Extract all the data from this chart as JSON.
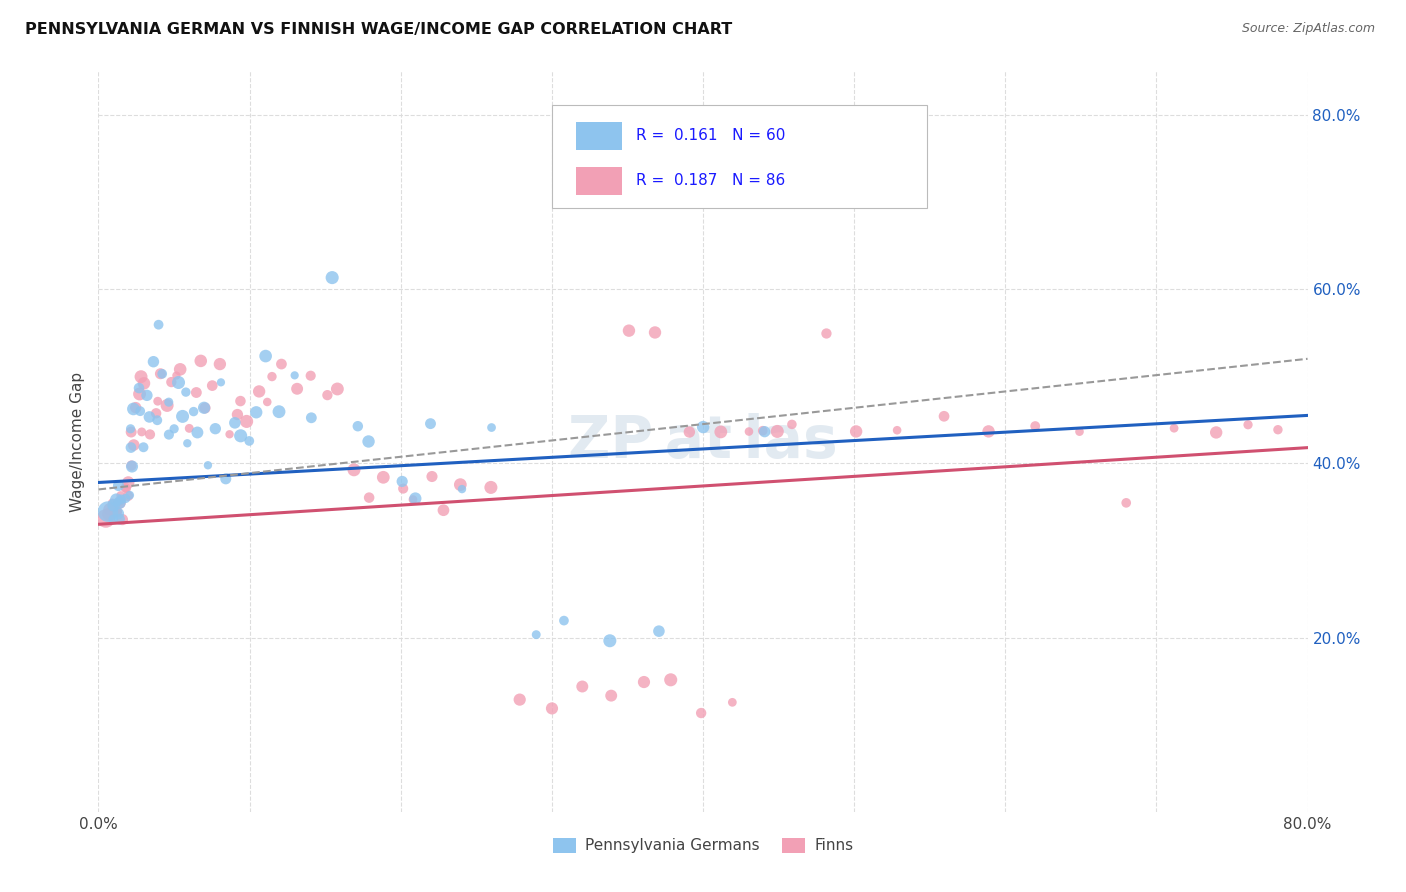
{
  "title": "PENNSYLVANIA GERMAN VS FINNISH WAGE/INCOME GAP CORRELATION CHART",
  "source": "Source: ZipAtlas.com",
  "ylabel": "Wage/Income Gap",
  "xlim": [
    0.0,
    0.8
  ],
  "ylim": [
    0.0,
    0.85
  ],
  "xtick_positions": [
    0.0,
    0.1,
    0.2,
    0.3,
    0.4,
    0.5,
    0.6,
    0.7,
    0.8
  ],
  "xtick_labels": [
    "0.0%",
    "",
    "",
    "",
    "",
    "",
    "",
    "",
    "80.0%"
  ],
  "ytick_positions": [
    0.2,
    0.4,
    0.6,
    0.8
  ],
  "ytick_labels": [
    "20.0%",
    "40.0%",
    "60.0%",
    "80.0%"
  ],
  "blue_color": "#8EC4EE",
  "pink_color": "#F2A0B5",
  "trendline_blue": "#2060c0",
  "trendline_pink": "#d05070",
  "trendline_dashed_color": "#999999",
  "R_blue": 0.161,
  "N_blue": 60,
  "R_pink": 0.187,
  "N_pink": 86,
  "legend_text_color": "#1a1aff",
  "background_color": "#ffffff",
  "grid_color": "#dddddd",
  "blue_line_x0": 0.0,
  "blue_line_y0": 0.378,
  "blue_line_x1": 0.8,
  "blue_line_y1": 0.455,
  "pink_line_x0": 0.0,
  "pink_line_y0": 0.33,
  "pink_line_x1": 0.8,
  "pink_line_y1": 0.418,
  "dash_line_x0": 0.0,
  "dash_line_y0": 0.37,
  "dash_line_x1": 0.8,
  "dash_line_y1": 0.52,
  "pg_x": [
    0.008,
    0.009,
    0.01,
    0.011,
    0.012,
    0.013,
    0.014,
    0.015,
    0.016,
    0.018,
    0.02,
    0.021,
    0.022,
    0.023,
    0.024,
    0.026,
    0.028,
    0.03,
    0.032,
    0.034,
    0.036,
    0.038,
    0.04,
    0.042,
    0.045,
    0.048,
    0.05,
    0.052,
    0.055,
    0.058,
    0.06,
    0.063,
    0.066,
    0.07,
    0.073,
    0.076,
    0.08,
    0.085,
    0.09,
    0.095,
    0.1,
    0.105,
    0.11,
    0.12,
    0.13,
    0.14,
    0.155,
    0.17,
    0.18,
    0.2,
    0.21,
    0.22,
    0.24,
    0.26,
    0.29,
    0.31,
    0.34,
    0.37,
    0.4,
    0.44
  ],
  "pg_y": [
    0.34,
    0.35,
    0.34,
    0.36,
    0.335,
    0.345,
    0.35,
    0.37,
    0.355,
    0.36,
    0.36,
    0.4,
    0.42,
    0.44,
    0.46,
    0.46,
    0.49,
    0.42,
    0.455,
    0.48,
    0.52,
    0.56,
    0.45,
    0.5,
    0.43,
    0.47,
    0.44,
    0.49,
    0.45,
    0.48,
    0.42,
    0.455,
    0.44,
    0.46,
    0.4,
    0.44,
    0.49,
    0.38,
    0.45,
    0.43,
    0.43,
    0.46,
    0.52,
    0.46,
    0.5,
    0.45,
    0.61,
    0.44,
    0.43,
    0.38,
    0.36,
    0.45,
    0.37,
    0.44,
    0.2,
    0.215,
    0.2,
    0.21,
    0.44,
    0.44
  ],
  "pg_sizes": [
    60,
    60,
    60,
    60,
    60,
    60,
    60,
    60,
    60,
    60,
    60,
    60,
    60,
    60,
    60,
    60,
    60,
    60,
    60,
    60,
    60,
    60,
    60,
    60,
    60,
    60,
    60,
    60,
    60,
    60,
    60,
    60,
    60,
    60,
    60,
    60,
    60,
    60,
    60,
    60,
    60,
    60,
    60,
    60,
    60,
    60,
    60,
    60,
    60,
    60,
    60,
    60,
    60,
    60,
    60,
    60,
    60,
    60,
    60,
    60
  ],
  "fi_x": [
    0.006,
    0.007,
    0.008,
    0.009,
    0.01,
    0.011,
    0.012,
    0.013,
    0.014,
    0.015,
    0.016,
    0.017,
    0.018,
    0.019,
    0.02,
    0.021,
    0.022,
    0.023,
    0.024,
    0.026,
    0.028,
    0.03,
    0.032,
    0.035,
    0.038,
    0.04,
    0.043,
    0.046,
    0.05,
    0.053,
    0.056,
    0.06,
    0.064,
    0.068,
    0.072,
    0.076,
    0.08,
    0.085,
    0.09,
    0.095,
    0.1,
    0.105,
    0.11,
    0.115,
    0.12,
    0.13,
    0.14,
    0.15,
    0.16,
    0.17,
    0.18,
    0.19,
    0.2,
    0.21,
    0.22,
    0.23,
    0.24,
    0.26,
    0.28,
    0.3,
    0.32,
    0.34,
    0.36,
    0.38,
    0.4,
    0.42,
    0.44,
    0.46,
    0.48,
    0.5,
    0.53,
    0.56,
    0.59,
    0.62,
    0.65,
    0.68,
    0.71,
    0.74,
    0.76,
    0.78,
    0.35,
    0.37,
    0.39,
    0.41,
    0.43,
    0.45
  ],
  "fi_y": [
    0.335,
    0.345,
    0.34,
    0.35,
    0.34,
    0.35,
    0.345,
    0.355,
    0.34,
    0.35,
    0.36,
    0.37,
    0.36,
    0.375,
    0.38,
    0.4,
    0.42,
    0.44,
    0.46,
    0.48,
    0.5,
    0.44,
    0.49,
    0.43,
    0.47,
    0.46,
    0.5,
    0.47,
    0.49,
    0.5,
    0.51,
    0.44,
    0.48,
    0.52,
    0.46,
    0.49,
    0.51,
    0.43,
    0.46,
    0.47,
    0.45,
    0.48,
    0.47,
    0.5,
    0.51,
    0.49,
    0.5,
    0.48,
    0.49,
    0.39,
    0.36,
    0.38,
    0.37,
    0.36,
    0.38,
    0.35,
    0.38,
    0.37,
    0.13,
    0.12,
    0.14,
    0.135,
    0.145,
    0.15,
    0.115,
    0.13,
    0.44,
    0.44,
    0.55,
    0.44,
    0.44,
    0.45,
    0.44,
    0.44,
    0.44,
    0.35,
    0.44,
    0.44,
    0.44,
    0.44,
    0.55,
    0.55,
    0.44,
    0.44,
    0.44,
    0.44
  ],
  "fi_sizes": [
    60,
    60,
    60,
    60,
    60,
    60,
    60,
    60,
    60,
    60,
    60,
    60,
    60,
    60,
    60,
    60,
    60,
    60,
    60,
    60,
    60,
    60,
    60,
    60,
    60,
    60,
    60,
    60,
    60,
    60,
    60,
    60,
    60,
    60,
    60,
    60,
    60,
    60,
    60,
    60,
    60,
    60,
    60,
    60,
    60,
    60,
    60,
    60,
    60,
    60,
    60,
    60,
    60,
    60,
    60,
    60,
    60,
    60,
    60,
    60,
    60,
    60,
    60,
    60,
    60,
    60,
    60,
    60,
    60,
    60,
    60,
    60,
    60,
    60,
    60,
    60,
    60,
    60,
    60,
    60,
    60,
    60,
    60,
    60,
    60,
    60
  ]
}
